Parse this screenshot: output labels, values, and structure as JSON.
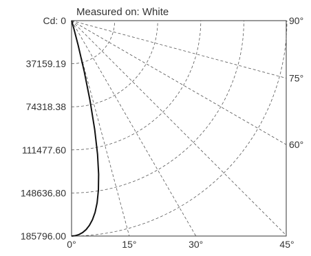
{
  "chart_data": {
    "type": "line",
    "subtype": "polar-quadrant candela distribution",
    "title": "Measured on: White",
    "radial_axis": {
      "unit_label": "Cd",
      "tick_labels": [
        "Cd: 0",
        "37159.19",
        "74318.38",
        "111477.60",
        "148636.80",
        "185796.00"
      ],
      "range": [
        0,
        185796.0
      ]
    },
    "angle_axis_bottom": {
      "tick_labels": [
        "0°",
        "15°",
        "30°",
        "45°"
      ],
      "values": [
        0,
        15,
        30,
        45
      ]
    },
    "angle_axis_right": {
      "tick_labels": [
        "90°",
        "75°",
        "60°"
      ],
      "values": [
        90,
        75,
        60
      ]
    },
    "grid": true,
    "series": [
      {
        "angle_deg": [
          0,
          1,
          2,
          3,
          4,
          5,
          6,
          7,
          8,
          9,
          10,
          11,
          12,
          13,
          14,
          15,
          16,
          17,
          18,
          20,
          25,
          30,
          40,
          50,
          60,
          70,
          80,
          90
        ],
        "candela": [
          185796,
          185500,
          184600,
          183000,
          180600,
          177200,
          172600,
          166600,
          158600,
          148000,
          134500,
          117500,
          96000,
          71000,
          45000,
          22000,
          8000,
          2500,
          800,
          200,
          60,
          20,
          5,
          2,
          1,
          0,
          0,
          0
        ]
      }
    ]
  }
}
